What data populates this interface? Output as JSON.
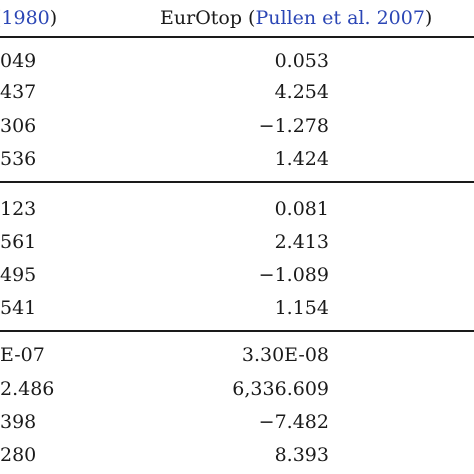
{
  "header": {
    "col1_year": "1980",
    "col2_name": "EurOtop",
    "col2_ref": "Pullen et al. 2007"
  },
  "groups": [
    {
      "rows": [
        {
          "c1": "049",
          "c2": "0.053"
        },
        {
          "c1": "437",
          "c2": "4.254"
        },
        {
          "c1": "306",
          "c2": "−1.278"
        },
        {
          "c1": "536",
          "c2": "1.424"
        }
      ]
    },
    {
      "rows": [
        {
          "c1": "123",
          "c2": "0.081"
        },
        {
          "c1": "561",
          "c2": "2.413"
        },
        {
          "c1": "495",
          "c2": "−1.089"
        },
        {
          "c1": "541",
          "c2": "1.154"
        }
      ]
    },
    {
      "rows": [
        {
          "c1": "E-07",
          "c2": "3.30E-08"
        },
        {
          "c1": "2.486",
          "c2": "6,336.609"
        },
        {
          "c1": "398",
          "c2": "−7.482"
        },
        {
          "c1": "280",
          "c2": "8.393"
        }
      ]
    }
  ]
}
